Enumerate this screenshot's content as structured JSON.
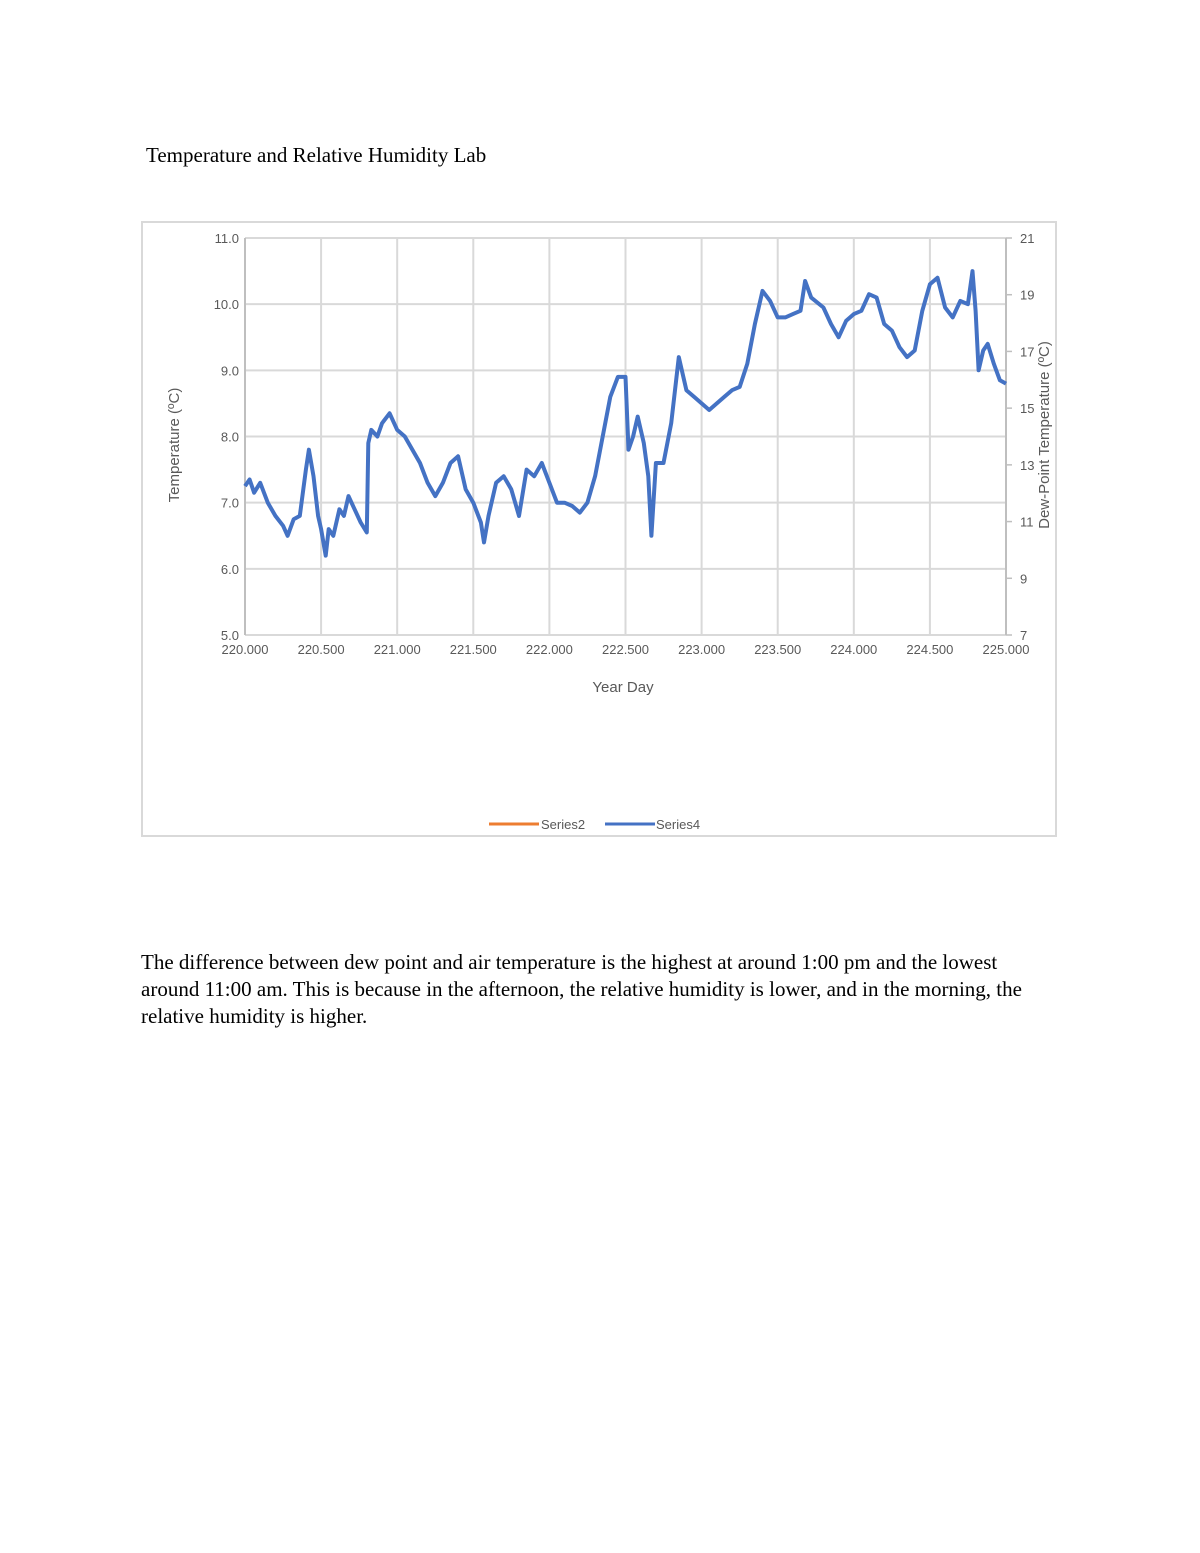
{
  "document": {
    "title": "Temperature and Relative Humidity Lab",
    "paragraph": "The difference between dew point and air temperature is the highest at around 1:00 pm and the lowest around 11:00 am. This is because in the afternoon, the relative humidity is lower, and in the morning, the relative humidity is higher."
  },
  "chart_data": {
    "type": "line",
    "title": "",
    "xlabel": "Year Day",
    "ylabel": "Temperature (ºC)",
    "y2label": "Dew-Point Temperature (ºC)",
    "xlim": [
      220,
      225
    ],
    "ylim": [
      5,
      11
    ],
    "y2lim": [
      7,
      21
    ],
    "x_ticks": [
      "220.000",
      "220.500",
      "221.000",
      "221.500",
      "222.000",
      "222.500",
      "223.000",
      "223.500",
      "224.000",
      "224.500",
      "225.000"
    ],
    "y_ticks": [
      "5.0",
      "6.0",
      "7.0",
      "8.0",
      "9.0",
      "10.0",
      "11.0"
    ],
    "y2_ticks": [
      "7",
      "9",
      "11",
      "13",
      "15",
      "17",
      "19",
      "21"
    ],
    "grid": true,
    "legend_placement": "bottom",
    "series": [
      {
        "name": "Series2",
        "color": "#ed7d31",
        "x": [],
        "y": []
      },
      {
        "name": "Series4",
        "color": "#4472c4",
        "x": [
          220.0,
          220.03,
          220.06,
          220.1,
          220.15,
          220.2,
          220.25,
          220.28,
          220.32,
          220.36,
          220.4,
          220.42,
          220.45,
          220.48,
          220.5,
          220.53,
          220.55,
          220.58,
          220.62,
          220.65,
          220.68,
          220.72,
          220.76,
          220.8,
          220.81,
          220.83,
          220.87,
          220.9,
          220.95,
          221.0,
          221.05,
          221.1,
          221.15,
          221.2,
          221.25,
          221.3,
          221.35,
          221.4,
          221.45,
          221.5,
          221.55,
          221.57,
          221.6,
          221.65,
          221.7,
          221.75,
          221.8,
          221.85,
          221.9,
          221.95,
          222.0,
          222.05,
          222.1,
          222.15,
          222.2,
          222.25,
          222.3,
          222.35,
          222.4,
          222.45,
          222.5,
          222.52,
          222.55,
          222.58,
          222.62,
          222.65,
          222.67,
          222.7,
          222.75,
          222.8,
          222.85,
          222.9,
          222.95,
          223.0,
          223.05,
          223.1,
          223.15,
          223.2,
          223.25,
          223.3,
          223.35,
          223.4,
          223.45,
          223.5,
          223.55,
          223.6,
          223.65,
          223.68,
          223.72,
          223.8,
          223.85,
          223.9,
          223.95,
          224.0,
          224.05,
          224.1,
          224.15,
          224.2,
          224.25,
          224.3,
          224.35,
          224.4,
          224.45,
          224.5,
          224.55,
          224.6,
          224.65,
          224.7,
          224.75,
          224.78,
          224.8,
          224.82,
          224.85,
          224.88,
          224.92,
          224.96,
          225.0
        ],
        "y": [
          7.25,
          7.35,
          7.15,
          7.3,
          7.0,
          6.8,
          6.65,
          6.5,
          6.75,
          6.8,
          7.5,
          7.8,
          7.4,
          6.8,
          6.6,
          6.2,
          6.6,
          6.5,
          6.9,
          6.8,
          7.1,
          6.9,
          6.7,
          6.55,
          7.9,
          8.1,
          8.0,
          8.2,
          8.35,
          8.1,
          8.0,
          7.8,
          7.6,
          7.3,
          7.1,
          7.3,
          7.6,
          7.7,
          7.2,
          7.0,
          6.7,
          6.4,
          6.8,
          7.3,
          7.4,
          7.2,
          6.8,
          7.5,
          7.4,
          7.6,
          7.3,
          7.0,
          7.0,
          6.95,
          6.85,
          7.0,
          7.4,
          8.0,
          8.6,
          8.9,
          8.9,
          7.8,
          8.0,
          8.3,
          7.9,
          7.4,
          6.5,
          7.6,
          7.6,
          8.2,
          9.2,
          8.7,
          8.6,
          8.5,
          8.4,
          8.5,
          8.6,
          8.7,
          8.75,
          9.1,
          9.7,
          10.2,
          10.05,
          9.8,
          9.8,
          9.85,
          9.9,
          10.35,
          10.1,
          9.95,
          9.7,
          9.5,
          9.75,
          9.85,
          9.9,
          10.15,
          10.1,
          9.7,
          9.6,
          9.35,
          9.2,
          9.3,
          9.9,
          10.3,
          10.4,
          9.95,
          9.8,
          10.05,
          10.0,
          10.5,
          9.9,
          9.0,
          9.3,
          9.4,
          9.1,
          8.85,
          8.8
        ]
      }
    ]
  }
}
